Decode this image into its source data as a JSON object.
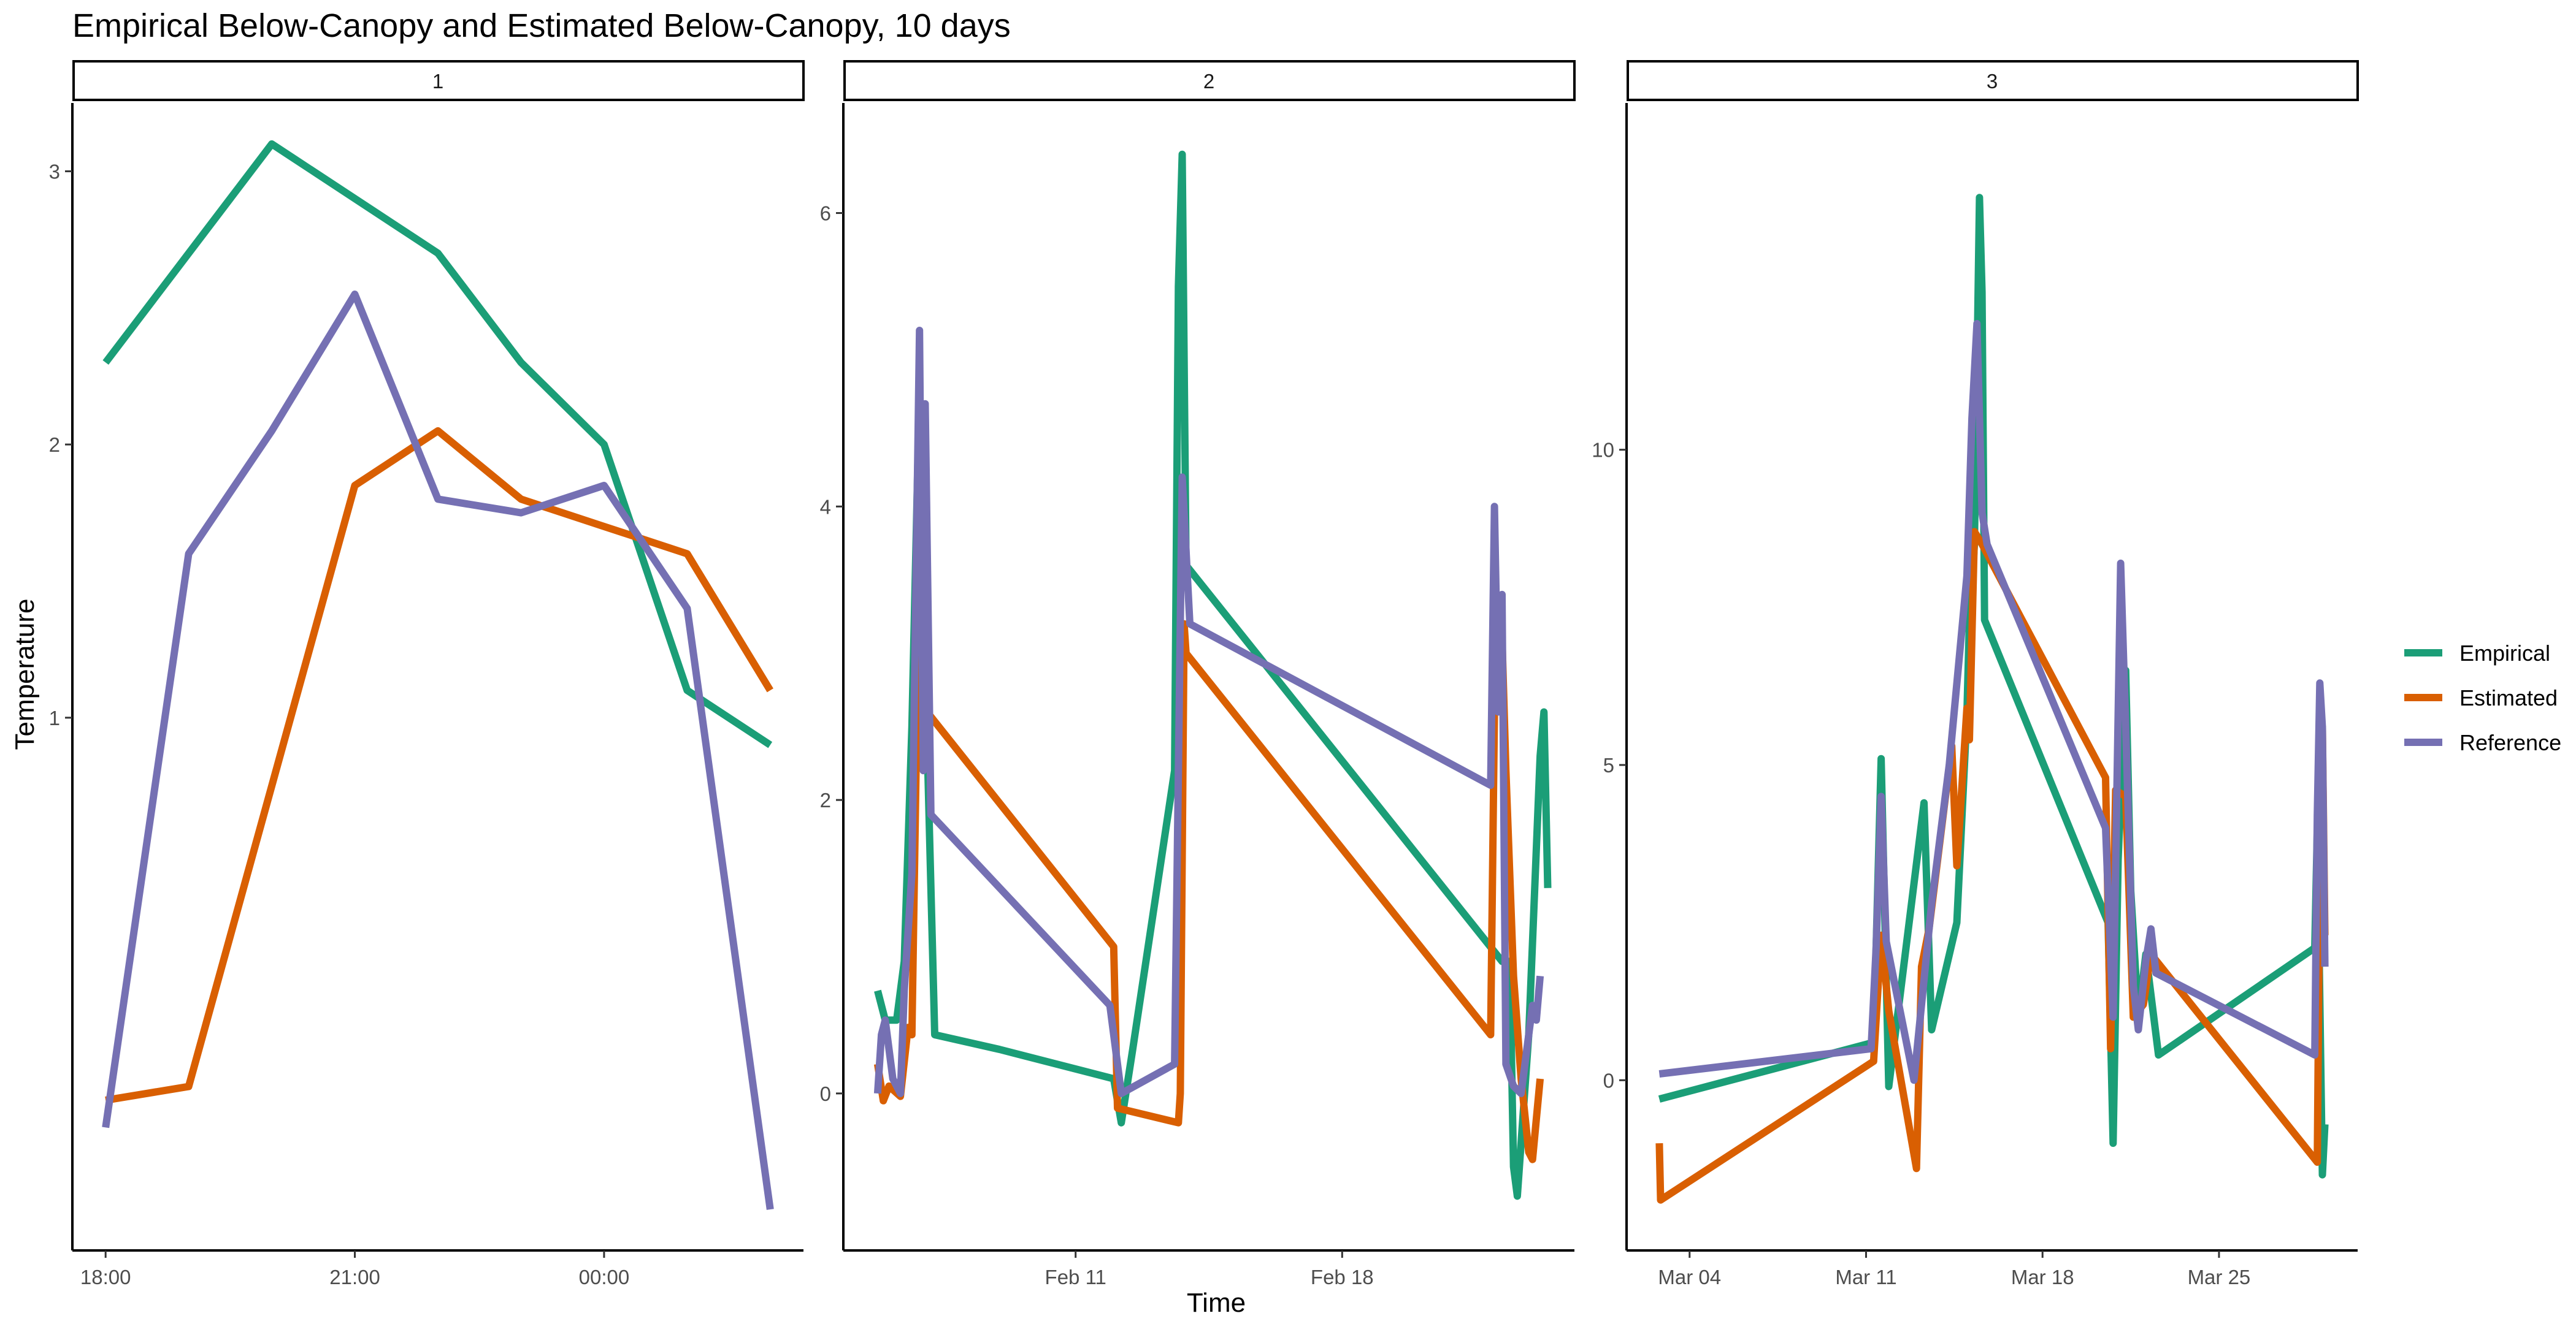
{
  "chart_data": {
    "type": "line",
    "title": "Empirical Below-Canopy and Estimated Below-Canopy, 10 days",
    "xlabel": "Time",
    "ylabel": "Temperature",
    "legend_position": "right",
    "grid": false,
    "legend": [
      {
        "name": "Empirical",
        "color": "#1B9E77"
      },
      {
        "name": "Estimated",
        "color": "#D95F02"
      },
      {
        "name": "Reference",
        "color": "#7570B3"
      }
    ],
    "panels": [
      {
        "strip": "1",
        "x_type": "time",
        "xlim": [
          -0.4,
          8.4
        ],
        "ylim": [
          -0.95,
          3.25
        ],
        "x_ticks": [
          {
            "value": 0,
            "label": "18:00"
          },
          {
            "value": 3,
            "label": "21:00"
          },
          {
            "value": 6,
            "label": "00:00"
          }
        ],
        "y_ticks": [
          {
            "value": 1,
            "label": "1"
          },
          {
            "value": 2,
            "label": "2"
          },
          {
            "value": 3,
            "label": "3"
          }
        ],
        "series": [
          {
            "name": "Empirical",
            "points": [
              [
                0,
                2.3
              ],
              [
                2,
                3.1
              ],
              [
                4,
                2.7
              ],
              [
                5,
                2.3
              ],
              [
                6,
                2.0
              ],
              [
                7,
                1.1
              ],
              [
                8,
                0.9
              ]
            ]
          },
          {
            "name": "Estimated",
            "points": [
              [
                0,
                -0.4
              ],
              [
                1,
                -0.35
              ],
              [
                3,
                1.85
              ],
              [
                4,
                2.05
              ],
              [
                5,
                1.8
              ],
              [
                6,
                1.7
              ],
              [
                7,
                1.6
              ],
              [
                8,
                1.1
              ]
            ]
          },
          {
            "name": "Reference",
            "points": [
              [
                0,
                -0.5
              ],
              [
                1,
                1.6
              ],
              [
                2,
                2.05
              ],
              [
                3,
                2.55
              ],
              [
                4,
                1.8
              ],
              [
                5,
                1.75
              ],
              [
                6,
                1.85
              ],
              [
                7,
                1.4
              ],
              [
                8,
                -0.8
              ]
            ]
          }
        ]
      },
      {
        "strip": "2",
        "x_type": "date",
        "xlim": [
          4.9,
          24.1
        ],
        "ylim": [
          -1.07,
          6.75
        ],
        "x_ticks": [
          {
            "value": 11,
            "label": "Feb 11"
          },
          {
            "value": 18,
            "label": "Feb 18"
          }
        ],
        "y_ticks": [
          {
            "value": 0,
            "label": "0"
          },
          {
            "value": 2,
            "label": "2"
          },
          {
            "value": 4,
            "label": "4"
          },
          {
            "value": 6,
            "label": "6"
          }
        ],
        "series": [
          {
            "name": "Empirical",
            "points": [
              [
                5.8,
                0.7
              ],
              [
                6.0,
                0.5
              ],
              [
                6.3,
                0.5
              ],
              [
                6.5,
                0.9
              ],
              [
                6.7,
                2.5
              ],
              [
                6.9,
                4.8
              ],
              [
                7.1,
                2.4
              ],
              [
                7.3,
                0.4
              ],
              [
                9.0,
                0.3
              ],
              [
                12.0,
                0.1
              ],
              [
                12.2,
                -0.2
              ],
              [
                12.5,
                0.3
              ],
              [
                13.6,
                2.2
              ],
              [
                13.7,
                5.5
              ],
              [
                13.8,
                6.4
              ],
              [
                13.9,
                3.6
              ],
              [
                22.2,
                0.9
              ],
              [
                22.4,
                0.9
              ],
              [
                22.5,
                -0.5
              ],
              [
                22.6,
                -0.7
              ],
              [
                22.9,
                0.4
              ],
              [
                23.2,
                2.3
              ],
              [
                23.3,
                2.6
              ],
              [
                23.4,
                1.4
              ]
            ]
          },
          {
            "name": "Estimated",
            "points": [
              [
                5.8,
                0.2
              ],
              [
                5.95,
                -0.05
              ],
              [
                6.1,
                0.05
              ],
              [
                6.4,
                -0.02
              ],
              [
                6.6,
                0.45
              ],
              [
                6.7,
                0.4
              ],
              [
                6.9,
                3.7
              ],
              [
                7.1,
                2.6
              ],
              [
                12.0,
                1.0
              ],
              [
                12.1,
                -0.1
              ],
              [
                13.7,
                -0.2
              ],
              [
                13.75,
                0.0
              ],
              [
                13.85,
                3.2
              ],
              [
                13.9,
                3.0
              ],
              [
                21.9,
                0.4
              ],
              [
                22.0,
                2.6
              ],
              [
                22.1,
                3.3
              ],
              [
                22.2,
                3.1
              ],
              [
                22.3,
                2.2
              ],
              [
                22.5,
                0.8
              ],
              [
                22.7,
                0.1
              ],
              [
                22.9,
                -0.4
              ],
              [
                23.0,
                -0.45
              ],
              [
                23.2,
                0.1
              ]
            ]
          },
          {
            "name": "Reference",
            "points": [
              [
                5.8,
                0.0
              ],
              [
                5.9,
                0.4
              ],
              [
                6.0,
                0.5
              ],
              [
                6.2,
                0.1
              ],
              [
                6.4,
                0.0
              ],
              [
                6.5,
                0.7
              ],
              [
                6.7,
                1.5
              ],
              [
                6.9,
                5.2
              ],
              [
                7.0,
                2.2
              ],
              [
                7.05,
                4.7
              ],
              [
                7.2,
                1.9
              ],
              [
                11.9,
                0.6
              ],
              [
                12.2,
                0.0
              ],
              [
                13.6,
                0.2
              ],
              [
                13.8,
                4.2
              ],
              [
                14.0,
                3.2
              ],
              [
                21.9,
                2.1
              ],
              [
                22.0,
                4.0
              ],
              [
                22.1,
                2.6
              ],
              [
                22.2,
                3.4
              ],
              [
                22.3,
                0.2
              ],
              [
                22.5,
                0.05
              ],
              [
                22.7,
                0.0
              ],
              [
                23.0,
                0.6
              ],
              [
                23.1,
                0.5
              ],
              [
                23.2,
                0.8
              ]
            ]
          }
        ]
      },
      {
        "strip": "3",
        "x_type": "date",
        "xlim": [
          1.5,
          30.5
        ],
        "ylim": [
          -2.7,
          15.5
        ],
        "x_ticks": [
          {
            "value": 4,
            "label": "Mar 04"
          },
          {
            "value": 11,
            "label": "Mar 11"
          },
          {
            "value": 18,
            "label": "Mar 18"
          },
          {
            "value": 25,
            "label": "Mar 25"
          }
        ],
        "y_ticks": [
          {
            "value": 0,
            "label": "0"
          },
          {
            "value": 5,
            "label": "5"
          },
          {
            "value": 10,
            "label": "10"
          }
        ],
        "series": [
          {
            "name": "Empirical",
            "points": [
              [
                2.8,
                -0.3
              ],
              [
                11.3,
                0.6
              ],
              [
                11.6,
                5.1
              ],
              [
                11.9,
                -0.1
              ],
              [
                13.3,
                4.4
              ],
              [
                13.6,
                0.8
              ],
              [
                14.6,
                2.5
              ],
              [
                15.0,
                5.8
              ],
              [
                15.1,
                7.3
              ],
              [
                15.3,
                8.5
              ],
              [
                15.5,
                14.0
              ],
              [
                15.6,
                12.5
              ],
              [
                15.7,
                7.3
              ],
              [
                20.6,
                2.5
              ],
              [
                20.8,
                -1.0
              ],
              [
                21.0,
                3.5
              ],
              [
                21.3,
                6.5
              ],
              [
                21.5,
                3.0
              ],
              [
                21.8,
                1.0
              ],
              [
                22.1,
                2.0
              ],
              [
                22.6,
                0.4
              ],
              [
                28.8,
                2.1
              ],
              [
                28.9,
                4.0
              ],
              [
                29.1,
                -1.5
              ],
              [
                29.2,
                -0.7
              ]
            ]
          },
          {
            "name": "Estimated",
            "points": [
              [
                2.8,
                -1.0
              ],
              [
                2.85,
                -1.9
              ],
              [
                11.3,
                0.3
              ],
              [
                11.6,
                2.3
              ],
              [
                11.9,
                1.1
              ],
              [
                13.0,
                -1.4
              ],
              [
                13.2,
                1.8
              ],
              [
                13.5,
                2.4
              ],
              [
                14.4,
                5.3
              ],
              [
                14.6,
                3.4
              ],
              [
                15.0,
                5.9
              ],
              [
                15.1,
                5.4
              ],
              [
                15.3,
                8.7
              ],
              [
                15.6,
                8.5
              ],
              [
                20.5,
                4.8
              ],
              [
                20.7,
                0.5
              ],
              [
                20.9,
                4.6
              ],
              [
                21.3,
                4.5
              ],
              [
                21.6,
                1.0
              ],
              [
                22.0,
                1.2
              ],
              [
                22.3,
                2.0
              ],
              [
                28.9,
                -1.3
              ],
              [
                29.0,
                3.5
              ],
              [
                29.1,
                5.6
              ],
              [
                29.2,
                2.3
              ]
            ]
          },
          {
            "name": "Reference",
            "points": [
              [
                2.8,
                0.1
              ],
              [
                11.2,
                0.5
              ],
              [
                11.4,
                2.1
              ],
              [
                11.6,
                4.5
              ],
              [
                11.8,
                2.2
              ],
              [
                12.9,
                0.0
              ],
              [
                13.6,
                2.8
              ],
              [
                14.3,
                5.0
              ],
              [
                15.0,
                8.0
              ],
              [
                15.2,
                10.5
              ],
              [
                15.4,
                12.0
              ],
              [
                15.6,
                9.0
              ],
              [
                15.8,
                8.5
              ],
              [
                20.5,
                4.0
              ],
              [
                20.8,
                1.0
              ],
              [
                21.1,
                8.2
              ],
              [
                21.3,
                5.6
              ],
              [
                21.6,
                1.5
              ],
              [
                21.8,
                0.8
              ],
              [
                22.1,
                1.9
              ],
              [
                22.3,
                2.4
              ],
              [
                22.5,
                1.7
              ],
              [
                28.8,
                0.4
              ],
              [
                28.9,
                4.2
              ],
              [
                29.0,
                6.3
              ],
              [
                29.1,
                5.6
              ],
              [
                29.2,
                1.8
              ]
            ]
          }
        ]
      }
    ]
  }
}
